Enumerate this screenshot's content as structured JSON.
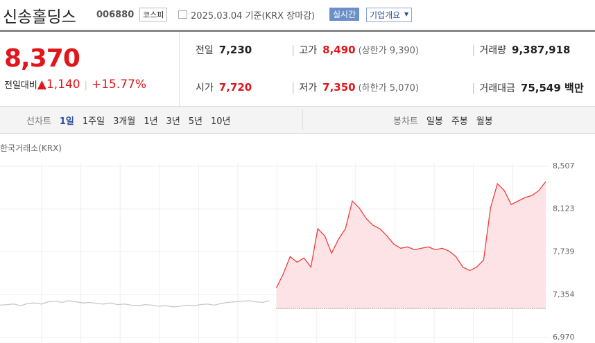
{
  "header": {
    "title": "신송홀딩스",
    "code": "006880",
    "market": "코스피",
    "date": "2025.03.04 기준(KRX 장마감)",
    "realtime": "실시간",
    "company": "기업개요"
  },
  "price": {
    "value": "8,370",
    "change_label": "전일대비",
    "change": "1,140",
    "rate": "+15.77%"
  },
  "stats": [
    {
      "label": "전일",
      "value": "7,230"
    },
    {
      "label": "고가",
      "value": "8,490",
      "extra": "(상한가 9,390)"
    },
    {
      "label": "거래량",
      "value": "9,387,918"
    },
    {
      "label": "시가",
      "value": "7,720"
    },
    {
      "label": "저가",
      "value": "7,350",
      "extra": "(하한가 5,070)"
    },
    {
      "label": "거래대금",
      "value": "75,549 백만"
    }
  ],
  "tabs": {
    "line_label": "선차트",
    "line": [
      "1일",
      "1주일",
      "3개월",
      "1년",
      "3년",
      "5년",
      "10년"
    ],
    "candle_label": "봉차트",
    "candle": [
      "일봉",
      "주봉",
      "월봉"
    ]
  },
  "chart_data": {
    "type": "line",
    "source": "한국거래소(KRX)",
    "ylim": [
      6970,
      8507
    ],
    "yticks": [
      {
        "value": 8507,
        "label": "8,507"
      },
      {
        "value": 8123,
        "label": "8,123"
      },
      {
        "value": 7739,
        "label": "7,739"
      },
      {
        "value": 7354,
        "label": "7,354"
      },
      {
        "value": 6970,
        "label": "6,970"
      }
    ],
    "grid": true,
    "baseline": 7230,
    "series": [
      {
        "color": "#c8c8c8",
        "values": [
          7260,
          7265,
          7270,
          7255,
          7275,
          7280,
          7270,
          7290,
          7295,
          7285,
          7300,
          7290,
          7280,
          7285,
          7275,
          7270,
          7280,
          7265,
          7270,
          7260,
          7255,
          7265,
          7260,
          7250,
          7255,
          7245,
          7250,
          7260,
          7255,
          7265,
          7270,
          7260,
          7275,
          7285,
          7290,
          7295,
          7300,
          7290,
          7285,
          7300,
          null,
          null,
          null,
          null,
          null,
          null,
          null,
          null,
          null,
          null,
          null,
          null,
          null,
          null,
          null,
          null,
          null,
          null,
          null,
          null,
          null,
          null,
          null,
          null,
          null,
          null,
          null,
          null,
          null,
          null,
          null,
          null,
          null,
          null,
          null,
          null,
          null,
          null,
          null,
          null
        ]
      },
      {
        "color": "#f03c3c",
        "fill": "#fde3e5",
        "values": [
          null,
          null,
          null,
          null,
          null,
          null,
          null,
          null,
          null,
          null,
          null,
          null,
          null,
          null,
          null,
          null,
          null,
          null,
          null,
          null,
          null,
          null,
          null,
          null,
          null,
          null,
          null,
          null,
          null,
          null,
          null,
          null,
          null,
          null,
          null,
          null,
          null,
          null,
          null,
          null,
          7415,
          7540,
          7696,
          7646,
          7684,
          7602,
          7946,
          7883,
          7727,
          7852,
          7946,
          8195,
          8133,
          8039,
          7977,
          7946,
          7883,
          7808,
          7771,
          7783,
          7758,
          7771,
          7783,
          7758,
          7771,
          7746,
          7696,
          7602,
          7571,
          7602,
          7665,
          8133,
          8351,
          8289,
          8164,
          8195,
          8226,
          8245,
          8289,
          8370
        ]
      }
    ]
  }
}
